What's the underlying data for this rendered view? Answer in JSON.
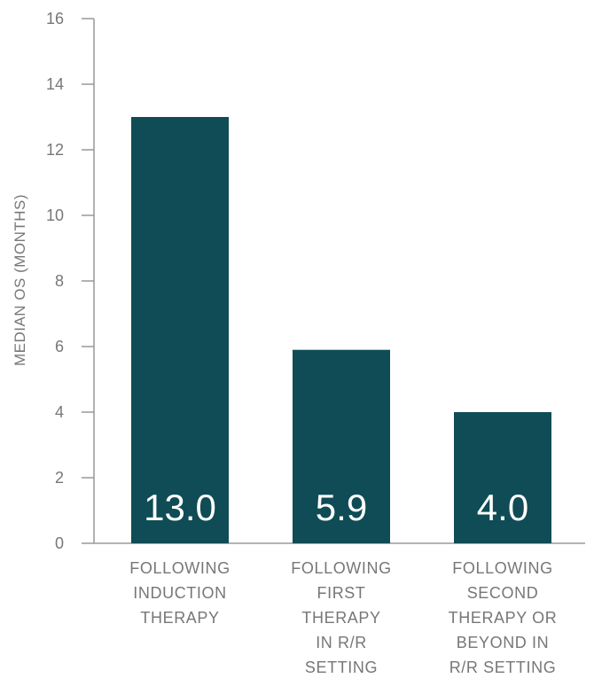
{
  "colors": {
    "bar": "#0f4c55",
    "axis": "#999999",
    "text": "#777777",
    "data_label": "#ffffff"
  },
  "chart_data": {
    "type": "bar",
    "title": "",
    "xlabel": "",
    "ylabel": "MEDIAN OS (MONTHS)",
    "ylim": [
      0,
      16
    ],
    "yticks": [
      0,
      2,
      4,
      6,
      8,
      10,
      12,
      14,
      16
    ],
    "grid": false,
    "categories": [
      [
        "FOLLOWING",
        "INDUCTION",
        "THERAPY"
      ],
      [
        "FOLLOWING",
        "FIRST",
        "THERAPY",
        "IN R/R",
        "SETTING"
      ],
      [
        "FOLLOWING",
        "SECOND",
        "THERAPY OR",
        "BEYOND IN",
        "R/R SETTING"
      ]
    ],
    "values": [
      13.0,
      5.9,
      4.0
    ],
    "data_labels": [
      "13.0",
      "5.9",
      "4.0"
    ]
  }
}
